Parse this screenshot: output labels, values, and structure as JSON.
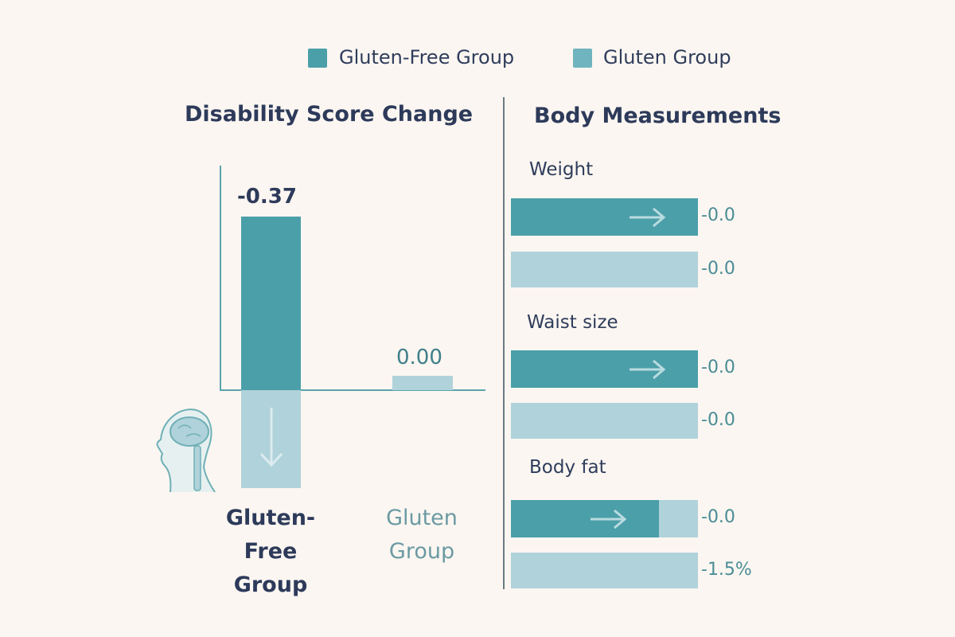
{
  "legend": [
    {
      "label": "Gluten-Free Group",
      "color": "#4b9fa9"
    },
    {
      "label": "Gluten Group",
      "color": "#6fb4be"
    }
  ],
  "colors": {
    "dark_bar": "#4b9fa9",
    "light_bar": "#b0d2da",
    "title": "#2d3a5a",
    "background": "#fbf6f1"
  },
  "chart_data": [
    {
      "type": "bar",
      "title": "Disability Score Change",
      "categories": [
        "Gluten-Free Group",
        "Gluten Group"
      ],
      "category_labels": [
        [
          "Gluten-",
          "Free",
          "Group"
        ],
        [
          "Gluten",
          "Group"
        ]
      ],
      "values": [
        -0.37,
        0.0
      ],
      "data_labels": [
        "-0.37",
        "0.00"
      ],
      "icons": [
        "head-brain-spine-icon",
        "down-arrow-icon"
      ]
    },
    {
      "type": "bar",
      "orientation": "horizontal",
      "title": "Body Measurements",
      "groups": [
        {
          "label": "Weight",
          "bars": [
            {
              "series": "Gluten-Free Group",
              "value_label": "-0.0",
              "fill": 1.0
            },
            {
              "series": "Gluten Group",
              "value_label": "-0.0",
              "fill": 1.0
            }
          ]
        },
        {
          "label": "Waist size",
          "bars": [
            {
              "series": "Gluten-Free Group",
              "value_label": "-0.0",
              "fill": 1.0
            },
            {
              "series": "Gluten Group",
              "value_label": "-0.0",
              "fill": 1.0
            }
          ]
        },
        {
          "label": "Body fat",
          "bars": [
            {
              "series": "Gluten-Free Group",
              "value_label": "-0.0",
              "fill": 0.79
            },
            {
              "series": "Gluten Group",
              "value_label": "-1.5%",
              "fill": 1.0
            }
          ]
        }
      ]
    }
  ]
}
